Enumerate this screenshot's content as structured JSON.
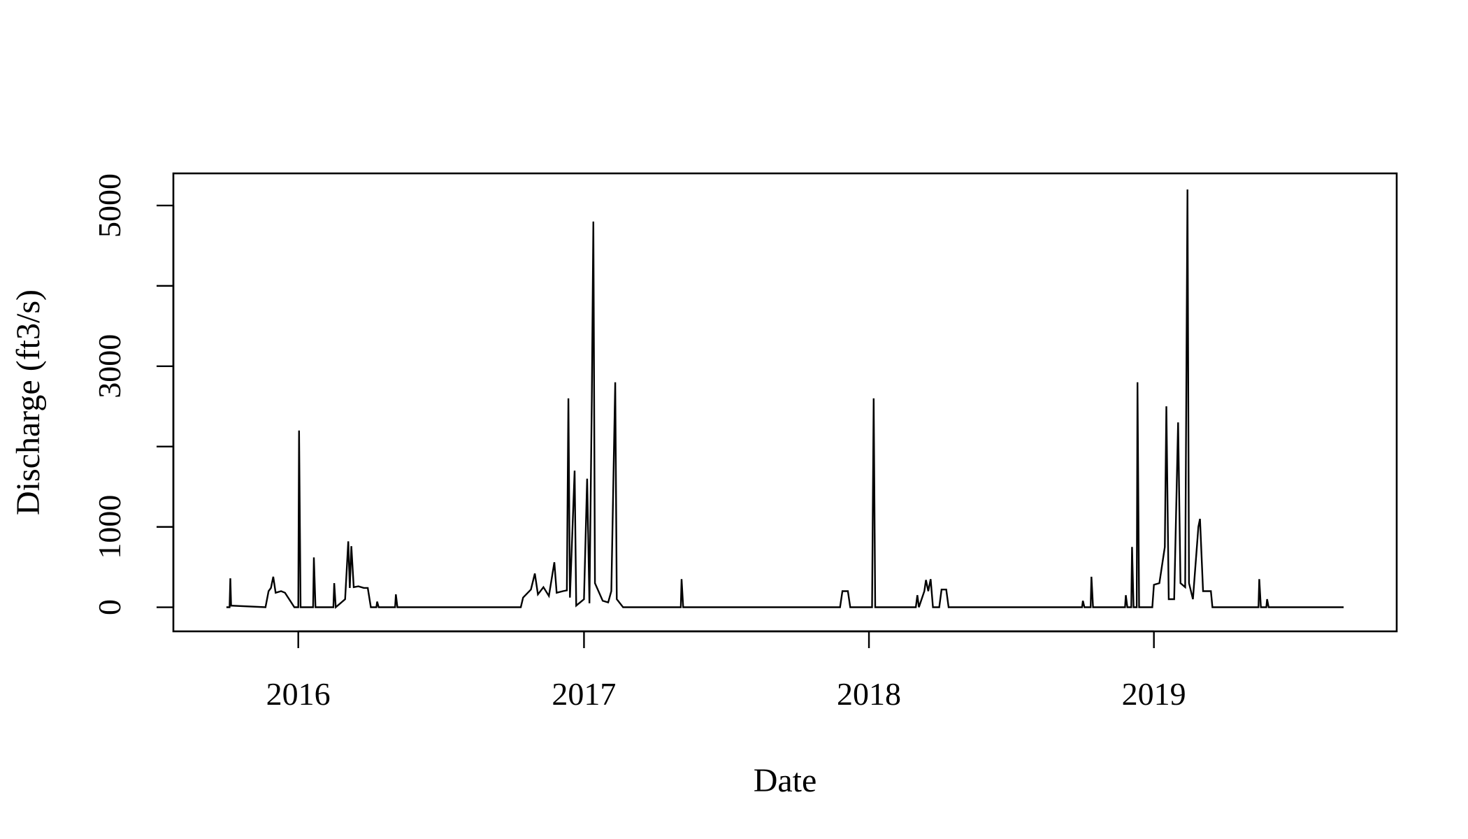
{
  "chart_data": {
    "type": "line",
    "title": "",
    "xlabel": "Date",
    "ylabel": "Discharge (ft3/s)",
    "xlim": [
      "2015-07-25",
      "2019-11-08"
    ],
    "ylim": [
      -300,
      5400
    ],
    "x_ticks": [
      "2016",
      "2017",
      "2018",
      "2019"
    ],
    "y_ticks": [
      "0",
      "1000",
      "3000",
      "5000"
    ],
    "grid": false,
    "line_color": "#000000",
    "series": [
      {
        "points": [
          [
            "2015-10-01",
            0
          ],
          [
            "2015-10-05",
            0
          ],
          [
            "2015-10-06",
            360
          ],
          [
            "2015-10-07",
            20
          ],
          [
            "2015-11-20",
            0
          ],
          [
            "2015-11-24",
            200
          ],
          [
            "2015-11-27",
            240
          ],
          [
            "2015-11-30",
            380
          ],
          [
            "2015-12-03",
            180
          ],
          [
            "2015-12-10",
            200
          ],
          [
            "2015-12-15",
            180
          ],
          [
            "2015-12-27",
            0
          ],
          [
            "2016-01-01",
            0
          ],
          [
            "2016-01-02",
            2200
          ],
          [
            "2016-01-04",
            0
          ],
          [
            "2016-01-20",
            0
          ],
          [
            "2016-01-21",
            620
          ],
          [
            "2016-01-23",
            0
          ],
          [
            "2016-02-15",
            0
          ],
          [
            "2016-02-16",
            300
          ],
          [
            "2016-02-18",
            0
          ],
          [
            "2016-03-01",
            100
          ],
          [
            "2016-03-05",
            820
          ],
          [
            "2016-03-07",
            240
          ],
          [
            "2016-03-09",
            760
          ],
          [
            "2016-03-12",
            250
          ],
          [
            "2016-03-18",
            260
          ],
          [
            "2016-03-25",
            240
          ],
          [
            "2016-03-30",
            240
          ],
          [
            "2016-04-03",
            0
          ],
          [
            "2016-04-10",
            0
          ],
          [
            "2016-04-11",
            70
          ],
          [
            "2016-04-13",
            0
          ],
          [
            "2016-05-04",
            0
          ],
          [
            "2016-05-05",
            160
          ],
          [
            "2016-05-07",
            0
          ],
          [
            "2016-10-12",
            0
          ],
          [
            "2016-10-15",
            120
          ],
          [
            "2016-10-25",
            220
          ],
          [
            "2016-10-30",
            420
          ],
          [
            "2016-11-03",
            160
          ],
          [
            "2016-11-10",
            250
          ],
          [
            "2016-11-17",
            140
          ],
          [
            "2016-11-24",
            560
          ],
          [
            "2016-11-27",
            180
          ],
          [
            "2016-12-05",
            200
          ],
          [
            "2016-12-10",
            210
          ],
          [
            "2016-12-12",
            2600
          ],
          [
            "2016-12-14",
            120
          ],
          [
            "2016-12-20",
            1700
          ],
          [
            "2016-12-22",
            20
          ],
          [
            "2017-01-01",
            100
          ],
          [
            "2017-01-05",
            1600
          ],
          [
            "2017-01-08",
            50
          ],
          [
            "2017-01-11",
            2600
          ],
          [
            "2017-01-13",
            4800
          ],
          [
            "2017-01-15",
            300
          ],
          [
            "2017-01-25",
            80
          ],
          [
            "2017-02-01",
            60
          ],
          [
            "2017-02-05",
            200
          ],
          [
            "2017-02-10",
            2800
          ],
          [
            "2017-02-12",
            100
          ],
          [
            "2017-02-20",
            0
          ],
          [
            "2017-05-05",
            0
          ],
          [
            "2017-05-06",
            350
          ],
          [
            "2017-05-08",
            0
          ],
          [
            "2017-11-25",
            0
          ],
          [
            "2017-11-28",
            200
          ],
          [
            "2017-12-05",
            200
          ],
          [
            "2017-12-08",
            0
          ],
          [
            "2018-01-05",
            0
          ],
          [
            "2018-01-07",
            2600
          ],
          [
            "2018-01-09",
            0
          ],
          [
            "2018-03-02",
            0
          ],
          [
            "2018-03-04",
            150
          ],
          [
            "2018-03-06",
            0
          ],
          [
            "2018-03-13",
            200
          ],
          [
            "2018-03-15",
            340
          ],
          [
            "2018-03-18",
            200
          ],
          [
            "2018-03-21",
            350
          ],
          [
            "2018-03-24",
            0
          ],
          [
            "2018-04-01",
            0
          ],
          [
            "2018-04-04",
            220
          ],
          [
            "2018-04-10",
            220
          ],
          [
            "2018-04-13",
            0
          ],
          [
            "2018-10-01",
            0
          ],
          [
            "2018-10-02",
            80
          ],
          [
            "2018-10-04",
            0
          ],
          [
            "2018-10-12",
            0
          ],
          [
            "2018-10-13",
            380
          ],
          [
            "2018-10-15",
            0
          ],
          [
            "2018-11-25",
            0
          ],
          [
            "2018-11-26",
            150
          ],
          [
            "2018-11-28",
            0
          ],
          [
            "2018-12-03",
            0
          ],
          [
            "2018-12-04",
            750
          ],
          [
            "2018-12-06",
            0
          ],
          [
            "2018-12-10",
            0
          ],
          [
            "2018-12-11",
            2800
          ],
          [
            "2018-12-13",
            0
          ],
          [
            "2018-12-30",
            0
          ],
          [
            "2019-01-01",
            280
          ],
          [
            "2019-01-08",
            300
          ],
          [
            "2019-01-15",
            750
          ],
          [
            "2019-01-17",
            2500
          ],
          [
            "2019-01-20",
            100
          ],
          [
            "2019-01-27",
            100
          ],
          [
            "2019-02-01",
            2300
          ],
          [
            "2019-02-04",
            300
          ],
          [
            "2019-02-10",
            250
          ],
          [
            "2019-02-13",
            5200
          ],
          [
            "2019-02-15",
            300
          ],
          [
            "2019-02-20",
            100
          ],
          [
            "2019-02-27",
            1000
          ],
          [
            "2019-03-01",
            1100
          ],
          [
            "2019-03-05",
            200
          ],
          [
            "2019-03-15",
            200
          ],
          [
            "2019-03-17",
            0
          ],
          [
            "2019-05-15",
            0
          ],
          [
            "2019-05-16",
            350
          ],
          [
            "2019-05-18",
            0
          ],
          [
            "2019-05-25",
            0
          ],
          [
            "2019-05-26",
            100
          ],
          [
            "2019-05-28",
            0
          ],
          [
            "2019-09-01",
            0
          ]
        ]
      }
    ]
  }
}
